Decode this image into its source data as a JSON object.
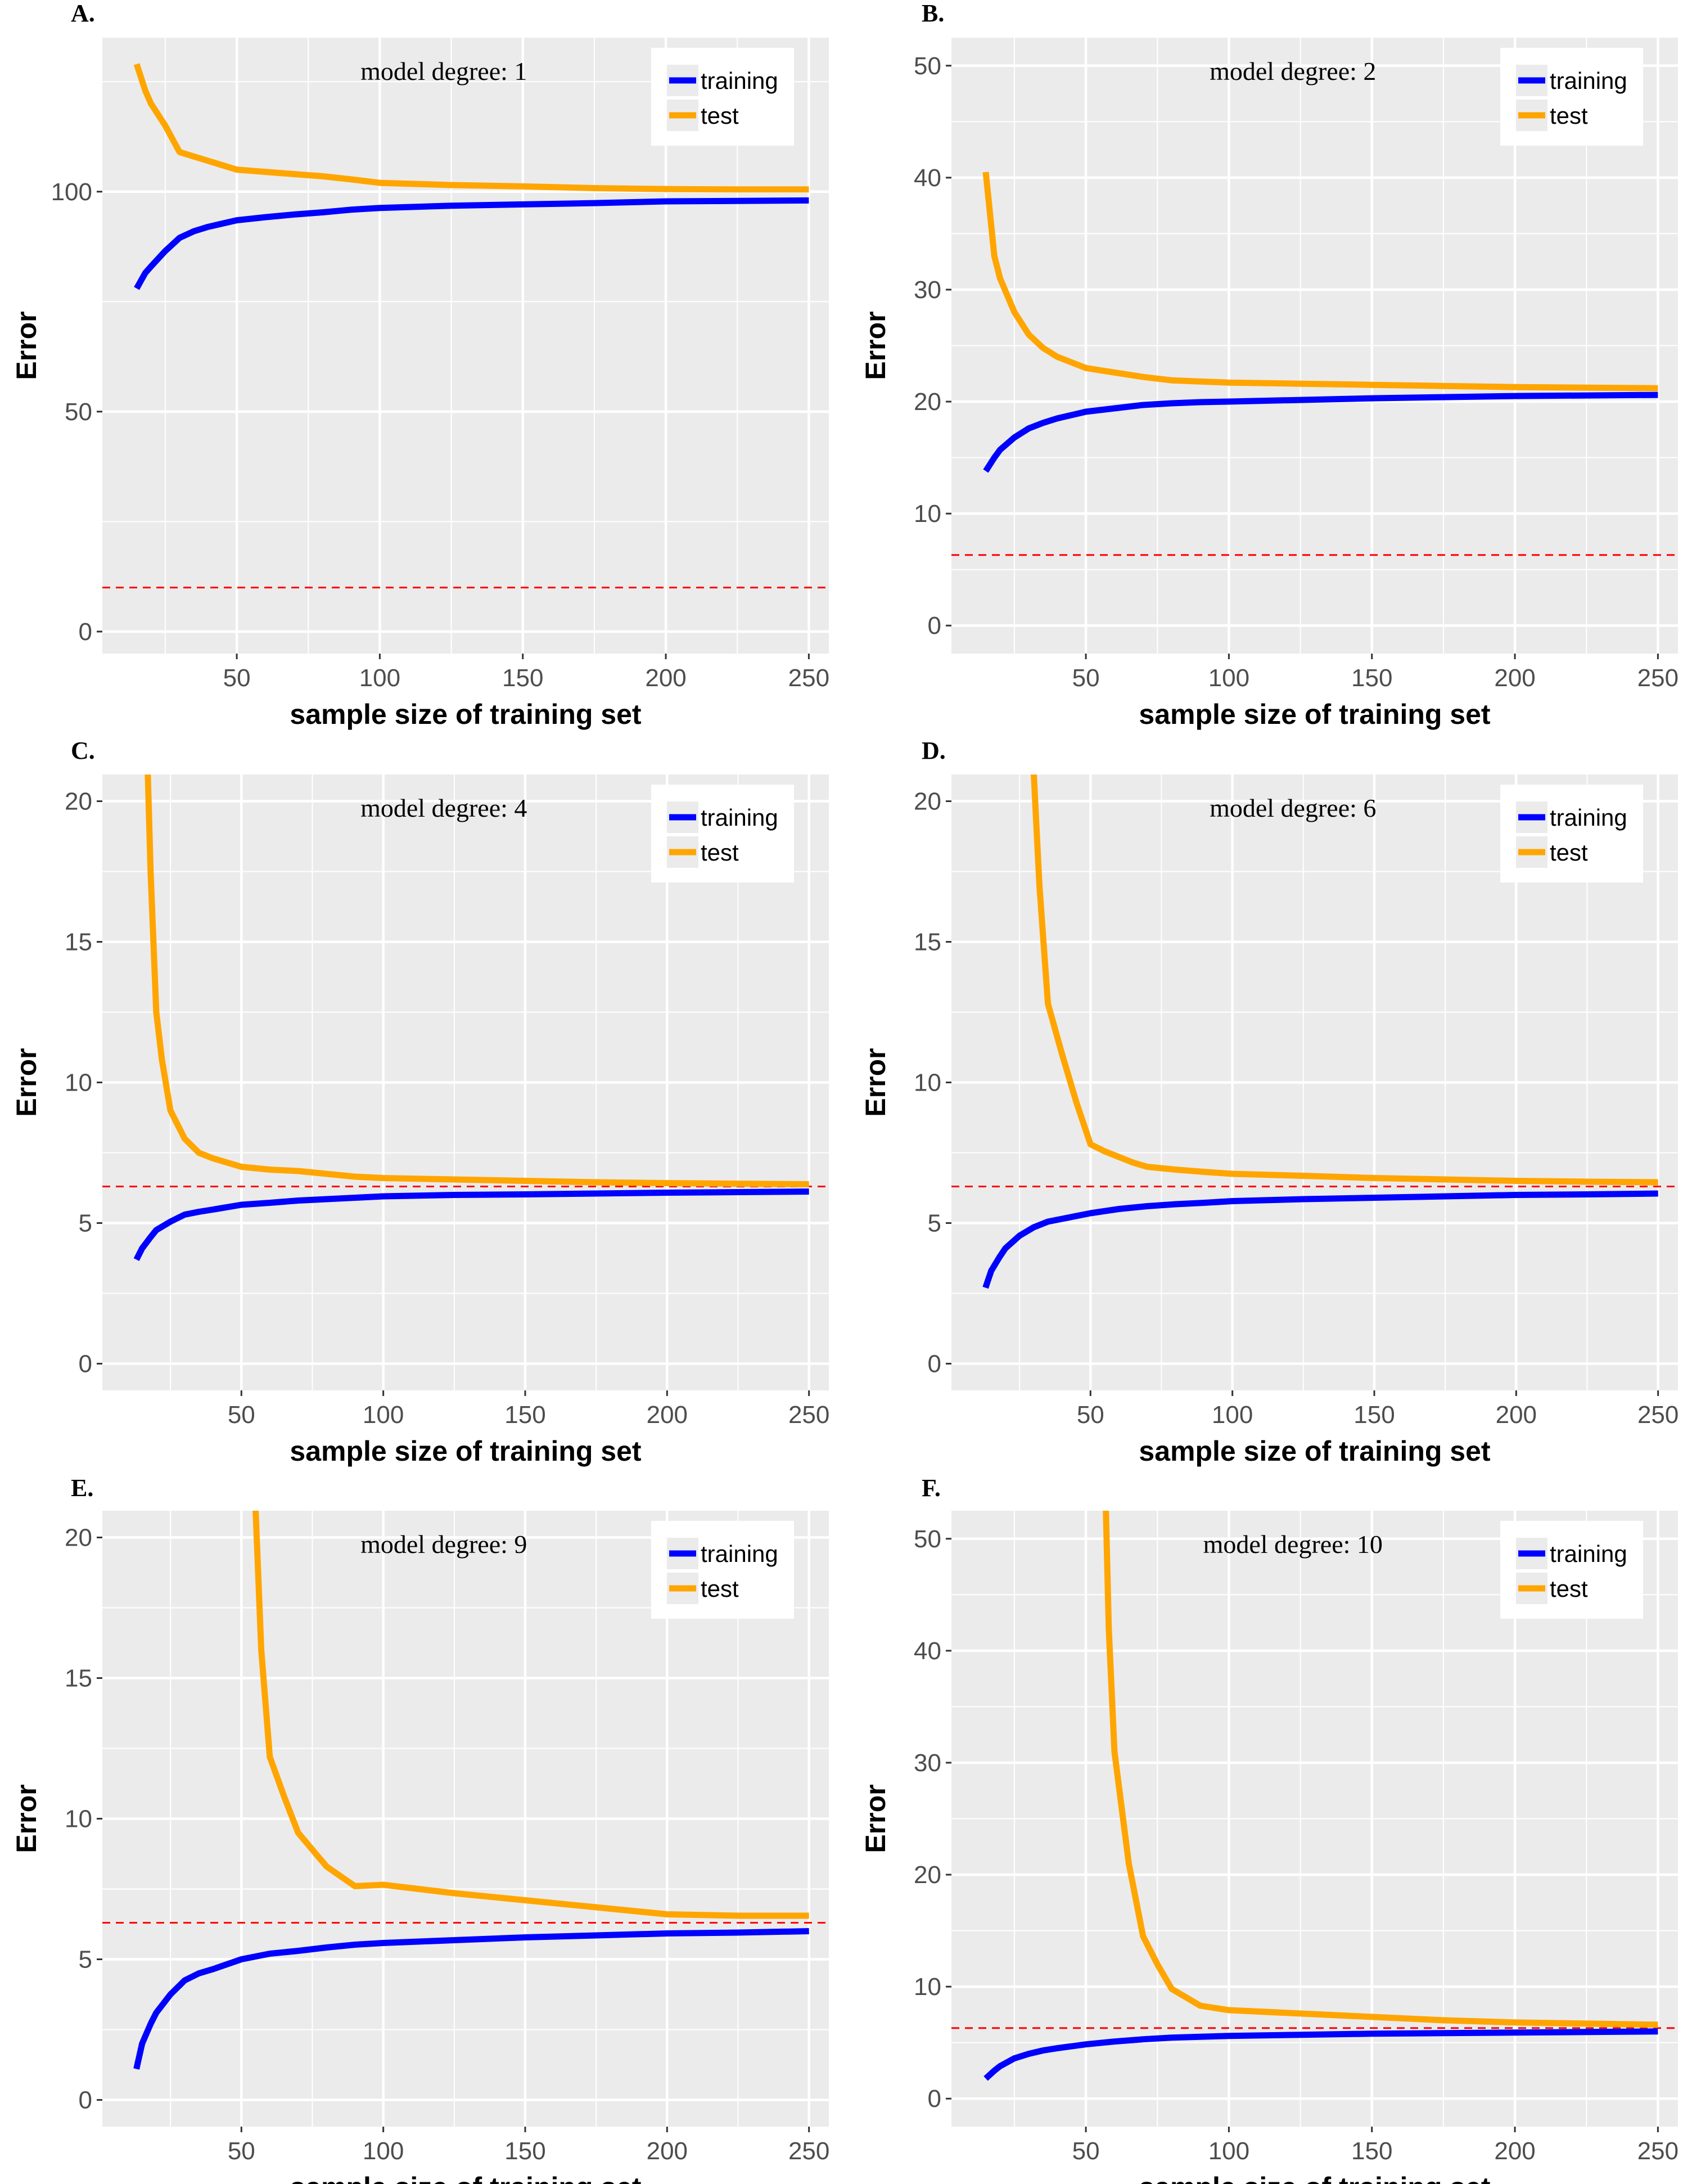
{
  "colors": {
    "training": "#0000ff",
    "test": "#ffa500",
    "reference": "#ff0000",
    "panel_bg": "#ebebeb",
    "grid": "#ffffff"
  },
  "chart_data": [
    {
      "panel": "A.",
      "type": "line",
      "annotation": "model degree: 1",
      "xlabel": "sample size of training set",
      "ylabel": "Error",
      "xlim": [
        3,
        257
      ],
      "ylim": [
        -5,
        135
      ],
      "xticks": [
        50,
        100,
        150,
        200,
        250
      ],
      "yticks": [
        0,
        50,
        100
      ],
      "reference_line": 10,
      "legend": [
        "training",
        "test"
      ],
      "series": [
        {
          "name": "training",
          "x": [
            15,
            18,
            20,
            25,
            30,
            35,
            40,
            50,
            60,
            70,
            80,
            90,
            100,
            125,
            150,
            175,
            200,
            225,
            250
          ],
          "y": [
            78,
            81.5,
            83,
            86.5,
            89.5,
            91,
            92,
            93.5,
            94.2,
            94.8,
            95.3,
            95.9,
            96.3,
            96.8,
            97.1,
            97.4,
            97.8,
            97.9,
            98
          ]
        },
        {
          "name": "test",
          "x": [
            15,
            18,
            20,
            25,
            30,
            35,
            40,
            50,
            60,
            70,
            80,
            90,
            100,
            125,
            150,
            175,
            200,
            225,
            250
          ],
          "y": [
            129,
            123,
            120,
            115,
            109,
            108,
            107,
            105,
            104.5,
            104,
            103.5,
            102.8,
            102,
            101.5,
            101.2,
            100.8,
            100.6,
            100.5,
            100.5
          ]
        }
      ]
    },
    {
      "panel": "B.",
      "type": "line",
      "annotation": "model degree: 2",
      "xlabel": "sample size of training set",
      "ylabel": "Error",
      "xlim": [
        3,
        257
      ],
      "ylim": [
        -2.5,
        52.5
      ],
      "xticks": [
        50,
        100,
        150,
        200,
        250
      ],
      "yticks": [
        0,
        10,
        20,
        30,
        40,
        50
      ],
      "reference_line": 6.3,
      "legend": [
        "training",
        "test"
      ],
      "series": [
        {
          "name": "training",
          "x": [
            15,
            18,
            20,
            25,
            30,
            35,
            40,
            50,
            60,
            70,
            80,
            90,
            100,
            125,
            150,
            175,
            200,
            225,
            250
          ],
          "y": [
            13.8,
            15,
            15.7,
            16.8,
            17.6,
            18.1,
            18.5,
            19.1,
            19.4,
            19.7,
            19.85,
            19.95,
            20,
            20.15,
            20.3,
            20.4,
            20.5,
            20.55,
            20.6
          ]
        },
        {
          "name": "test",
          "x": [
            15,
            18,
            20,
            25,
            30,
            35,
            40,
            50,
            60,
            70,
            80,
            90,
            100,
            125,
            150,
            175,
            200,
            225,
            250
          ],
          "y": [
            40.5,
            33,
            31,
            28,
            26,
            24.8,
            24,
            23,
            22.6,
            22.2,
            21.9,
            21.8,
            21.7,
            21.6,
            21.5,
            21.4,
            21.3,
            21.25,
            21.2
          ]
        }
      ]
    },
    {
      "panel": "C.",
      "type": "line",
      "annotation": "model degree: 4",
      "xlabel": "sample size of training set",
      "ylabel": "Error",
      "xlim": [
        1,
        257
      ],
      "ylim": [
        -0.95,
        20.95
      ],
      "xticks": [
        50,
        100,
        150,
        200,
        250
      ],
      "yticks": [
        0,
        5,
        10,
        15,
        20
      ],
      "reference_line": 6.3,
      "legend": [
        "training",
        "test"
      ],
      "series": [
        {
          "name": "training",
          "x": [
            13,
            15,
            18,
            20,
            25,
            30,
            35,
            40,
            50,
            60,
            70,
            80,
            90,
            100,
            125,
            150,
            175,
            200,
            225,
            250
          ],
          "y": [
            3.7,
            4.1,
            4.5,
            4.75,
            5.05,
            5.3,
            5.4,
            5.48,
            5.65,
            5.72,
            5.8,
            5.85,
            5.9,
            5.95,
            6,
            6.02,
            6.05,
            6.08,
            6.1,
            6.12
          ]
        },
        {
          "name": "test",
          "x": [
            17,
            18,
            20,
            22,
            25,
            30,
            35,
            40,
            50,
            60,
            70,
            80,
            90,
            100,
            125,
            150,
            175,
            200,
            225,
            250
          ],
          "y": [
            21,
            17.5,
            12.5,
            10.8,
            9,
            8,
            7.5,
            7.3,
            7,
            6.9,
            6.85,
            6.75,
            6.65,
            6.6,
            6.55,
            6.5,
            6.45,
            6.42,
            6.4,
            6.38
          ]
        }
      ]
    },
    {
      "panel": "D.",
      "type": "line",
      "annotation": "model degree: 6",
      "xlabel": "sample size of training set",
      "ylabel": "Error",
      "xlim": [
        1,
        257
      ],
      "ylim": [
        -0.95,
        20.95
      ],
      "xticks": [
        50,
        100,
        150,
        200,
        250
      ],
      "yticks": [
        0,
        5,
        10,
        15,
        20
      ],
      "reference_line": 6.3,
      "legend": [
        "training",
        "test"
      ],
      "series": [
        {
          "name": "training",
          "x": [
            13,
            15,
            18,
            20,
            25,
            30,
            35,
            40,
            50,
            60,
            70,
            80,
            90,
            100,
            125,
            150,
            175,
            200,
            225,
            250
          ],
          "y": [
            2.7,
            3.3,
            3.8,
            4.1,
            4.55,
            4.85,
            5.05,
            5.15,
            5.35,
            5.5,
            5.6,
            5.67,
            5.72,
            5.78,
            5.85,
            5.9,
            5.95,
            6,
            6.02,
            6.05
          ]
        },
        {
          "name": "test",
          "x": [
            30,
            31,
            32,
            35,
            40,
            45,
            50,
            55,
            60,
            65,
            70,
            80,
            90,
            100,
            125,
            150,
            175,
            200,
            225,
            250
          ],
          "y": [
            21,
            19,
            17,
            12.8,
            11,
            9.3,
            7.8,
            7.55,
            7.35,
            7.15,
            7,
            6.9,
            6.82,
            6.75,
            6.68,
            6.6,
            6.55,
            6.5,
            6.47,
            6.45
          ]
        }
      ]
    },
    {
      "panel": "E.",
      "type": "line",
      "annotation": "model degree: 9",
      "xlabel": "sample size of training set",
      "ylabel": "Error",
      "xlim": [
        1,
        257
      ],
      "ylim": [
        -0.95,
        20.95
      ],
      "xticks": [
        50,
        100,
        150,
        200,
        250
      ],
      "yticks": [
        0,
        5,
        10,
        15,
        20
      ],
      "reference_line": 6.3,
      "legend": [
        "training",
        "test"
      ],
      "series": [
        {
          "name": "training",
          "x": [
            13,
            15,
            18,
            20,
            25,
            30,
            35,
            40,
            50,
            60,
            70,
            80,
            90,
            100,
            125,
            150,
            175,
            200,
            225,
            250
          ],
          "y": [
            1.1,
            2,
            2.7,
            3.1,
            3.75,
            4.25,
            4.5,
            4.65,
            5,
            5.2,
            5.3,
            5.42,
            5.52,
            5.58,
            5.68,
            5.78,
            5.85,
            5.92,
            5.95,
            6
          ]
        },
        {
          "name": "test",
          "x": [
            55,
            57,
            60,
            65,
            70,
            80,
            90,
            100,
            125,
            150,
            175,
            200,
            225,
            250
          ],
          "y": [
            21,
            16,
            12.2,
            10.8,
            9.5,
            8.3,
            7.6,
            7.65,
            7.35,
            7.1,
            6.85,
            6.6,
            6.55,
            6.55
          ]
        }
      ]
    },
    {
      "panel": "F.",
      "type": "line",
      "annotation": "model degree: 10",
      "xlabel": "sample size of training set",
      "ylabel": "Error",
      "xlim": [
        3,
        257
      ],
      "ylim": [
        -2.5,
        52.5
      ],
      "xticks": [
        50,
        100,
        150,
        200,
        250
      ],
      "yticks": [
        0,
        10,
        20,
        30,
        40,
        50
      ],
      "reference_line": 6.3,
      "legend": [
        "training",
        "test"
      ],
      "series": [
        {
          "name": "training",
          "x": [
            15,
            18,
            20,
            25,
            30,
            35,
            40,
            50,
            60,
            70,
            80,
            90,
            100,
            125,
            150,
            175,
            200,
            225,
            250
          ],
          "y": [
            1.8,
            2.5,
            2.9,
            3.6,
            4,
            4.3,
            4.5,
            4.85,
            5.1,
            5.3,
            5.45,
            5.52,
            5.6,
            5.7,
            5.8,
            5.85,
            5.9,
            5.95,
            6
          ]
        },
        {
          "name": "test",
          "x": [
            57,
            58,
            60,
            62,
            65,
            70,
            75,
            80,
            90,
            100,
            125,
            150,
            175,
            200,
            225,
            250
          ],
          "y": [
            52.5,
            42,
            31,
            27,
            21,
            14.5,
            12,
            9.8,
            8.3,
            7.9,
            7.6,
            7.3,
            7,
            6.8,
            6.7,
            6.6
          ]
        }
      ]
    }
  ]
}
